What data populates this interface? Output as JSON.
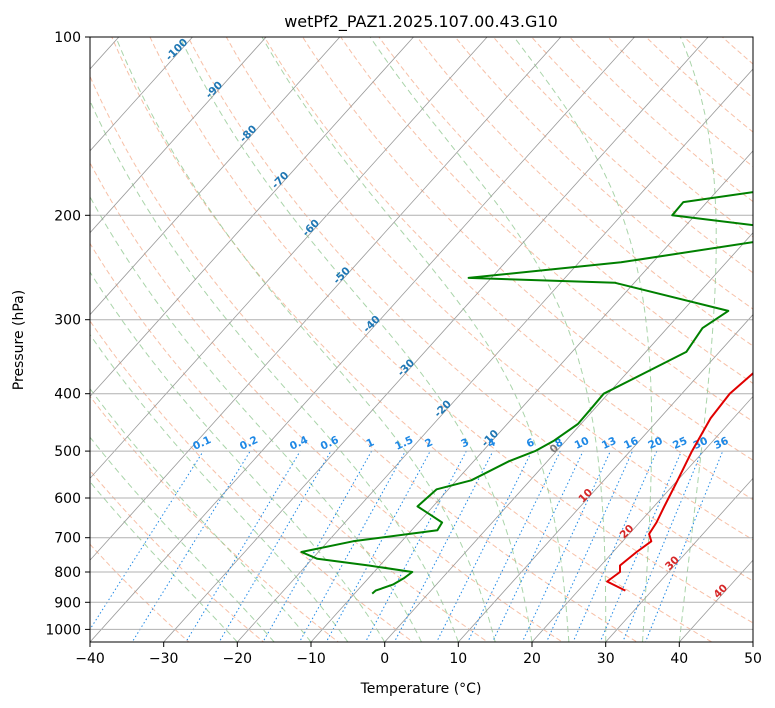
{
  "chart_data": {
    "type": "line",
    "title": "wetPf2_PAZ1.2025.107.00.43.G10",
    "xlabel": "Temperature (°C)",
    "ylabel": "Pressure (hPa)",
    "xlim": [
      -40,
      50
    ],
    "ylim": [
      1050,
      100
    ],
    "y_scale": "log",
    "x_ticks": [
      -40,
      -30,
      -20,
      -10,
      0,
      10,
      20,
      30,
      40,
      50
    ],
    "x_tick_labels": [
      "−40",
      "−30",
      "−20",
      "−10",
      "0",
      "10",
      "20",
      "30",
      "40",
      "50"
    ],
    "y_ticks": [
      1000,
      900,
      800,
      700,
      600,
      500,
      400,
      300,
      200,
      100
    ],
    "y_tick_labels": [
      "1000",
      "900",
      "800",
      "700",
      "600",
      "500",
      "400",
      "300",
      "200",
      "100"
    ],
    "grid": true,
    "background_lines": {
      "dry_adiabats_color": "#f4a582",
      "moist_adiabats_color": "#8cc68c",
      "isotherms_color": "#999999",
      "mixing_ratio_color": "#1e88e5"
    },
    "isotherm_labels": [
      "-100",
      "-90",
      "-80",
      "-70",
      "-60",
      "-50",
      "-40",
      "-30",
      "-20",
      "-10"
    ],
    "mixing_ratio_labels": [
      "0.1",
      "0.2",
      "0.4",
      "0.6",
      "1",
      "1.5",
      "2",
      "3",
      "4",
      "6",
      "8",
      "10",
      "13",
      "16",
      "20",
      "25",
      "30",
      "36"
    ],
    "positive_isotherm_labels": [
      "0",
      "10",
      "20",
      "30",
      "40"
    ],
    "series": [
      {
        "color": "#e00000",
        "points": [
          [
            26.4,
            860
          ],
          [
            22.8,
            830
          ],
          [
            23.4,
            800
          ],
          [
            22.6,
            780
          ],
          [
            23.2,
            740
          ],
          [
            23.9,
            710
          ],
          [
            22.7,
            690
          ],
          [
            22.3,
            660
          ],
          [
            21.4,
            620
          ],
          [
            20.0,
            560
          ],
          [
            18.4,
            500
          ],
          [
            16.9,
            440
          ],
          [
            16.5,
            400
          ],
          [
            17.4,
            360
          ],
          [
            17.1,
            340
          ],
          [
            18.6,
            310
          ],
          [
            19.2,
            290
          ],
          [
            20.0,
            275
          ],
          [
            22.5,
            260
          ],
          [
            26.6,
            240
          ],
          [
            31.6,
            220
          ],
          [
            33.8,
            200
          ],
          [
            33.3,
            190
          ],
          [
            33.5,
            170
          ],
          [
            34.9,
            160
          ],
          [
            36.3,
            150
          ],
          [
            38.7,
            135
          ],
          [
            39.3,
            125
          ],
          [
            40.8,
            115
          ],
          [
            42.2,
            105
          ],
          [
            43.0,
            100
          ]
        ]
      },
      {
        "color": "#008000",
        "points": [
          [
            -7.6,
            870
          ],
          [
            -7.5,
            860
          ],
          [
            -5.9,
            840
          ],
          [
            -5.2,
            820
          ],
          [
            -4.8,
            800
          ],
          [
            -11.5,
            780
          ],
          [
            -19.3,
            760
          ],
          [
            -22.3,
            740
          ],
          [
            -16.6,
            710
          ],
          [
            -6.5,
            680
          ],
          [
            -6.8,
            660
          ],
          [
            -9.4,
            640
          ],
          [
            -12.1,
            620
          ],
          [
            -11.6,
            580
          ],
          [
            -8.0,
            560
          ],
          [
            -5.2,
            520
          ],
          [
            -2.9,
            500
          ],
          [
            -1.6,
            480
          ],
          [
            -0.4,
            450
          ],
          [
            -0.5,
            420
          ],
          [
            -0.6,
            400
          ],
          [
            5.5,
            340
          ],
          [
            4.8,
            310
          ],
          [
            6.2,
            290
          ],
          [
            -12.6,
            260
          ],
          [
            -33.1,
            255
          ],
          [
            -14.3,
            240
          ],
          [
            2.9,
            220
          ],
          [
            2.5,
            210
          ],
          [
            -13.1,
            200
          ],
          [
            -13.2,
            190
          ],
          [
            -1.7,
            180
          ],
          [
            10.1,
            170
          ],
          [
            19.2,
            160
          ],
          [
            19.7,
            150
          ],
          [
            23.8,
            140
          ],
          [
            27.4,
            130
          ],
          [
            30.3,
            120
          ],
          [
            33.5,
            110
          ],
          [
            34.3,
            100
          ]
        ]
      }
    ]
  }
}
